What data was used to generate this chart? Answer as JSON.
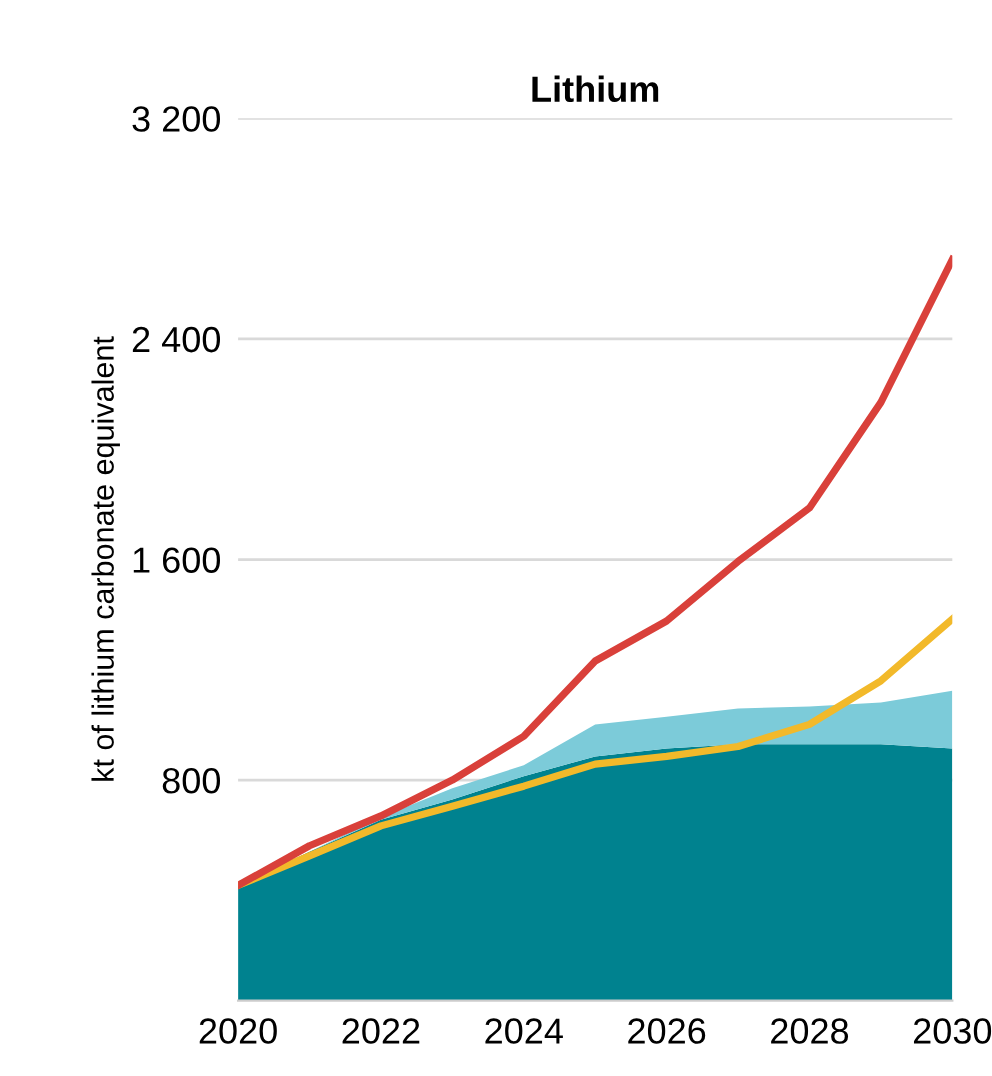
{
  "chart_data": {
    "type": "line",
    "title": "Lithium",
    "ylabel": "kt of lithium carbonate equivalent",
    "x": [
      2020,
      2021,
      2022,
      2023,
      2024,
      2025,
      2026,
      2027,
      2028,
      2029,
      2030
    ],
    "stacked": true,
    "series": [
      {
        "type": "area",
        "color": "#00828f",
        "values": [
          418,
          540,
          656,
          730,
          814,
          886,
          915,
          930,
          930,
          930,
          915
        ]
      },
      {
        "type": "area",
        "color": "#7ccbd9",
        "values": [
          0,
          0,
          10,
          40,
          40,
          116,
          115,
          130,
          137,
          151,
          209
        ]
      },
      {
        "color": "#f2b92a",
        "values": [
          418,
          525,
          634,
          705,
          778,
          858,
          886,
          922,
          1002,
          1160,
          1384
        ]
      },
      {
        "color": "#d9403a",
        "values": [
          418,
          562,
          670,
          800,
          959,
          1232,
          1377,
          1593,
          1787,
          2170,
          2688
        ]
      }
    ],
    "xlim": [
      2020,
      2030
    ],
    "xticks": [
      2020,
      2022,
      2024,
      2026,
      2028,
      2030
    ],
    "ylim": [
      0,
      3200
    ],
    "yticks": [
      {
        "value": 800,
        "label": "800"
      },
      {
        "value": 1600,
        "label": "1 600"
      },
      {
        "value": 2400,
        "label": "2 400"
      },
      {
        "value": 3200,
        "label": "3 200"
      }
    ],
    "grid": "y",
    "legend": false
  }
}
